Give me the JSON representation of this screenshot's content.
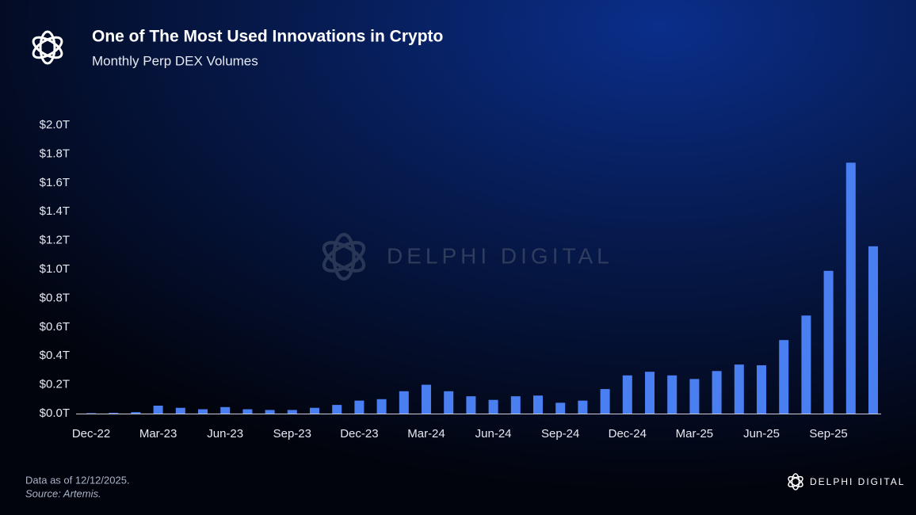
{
  "chart_data": {
    "type": "bar",
    "title": "One of The Most Used Innovations in Crypto",
    "subtitle": "Monthly Perp DEX Volumes",
    "categories": [
      "Dec-22",
      null,
      null,
      "Mar-23",
      null,
      null,
      "Jun-23",
      null,
      null,
      "Sep-23",
      null,
      null,
      "Dec-23",
      null,
      null,
      "Mar-24",
      null,
      null,
      "Jun-24",
      null,
      null,
      "Sep-24",
      null,
      null,
      "Dec-24",
      null,
      null,
      "Mar-25",
      null,
      null,
      "Jun-25",
      null,
      null,
      "Sep-25",
      null,
      null
    ],
    "values": [
      0.003,
      0.005,
      0.01,
      0.055,
      0.04,
      0.03,
      0.045,
      0.03,
      0.025,
      0.025,
      0.04,
      0.06,
      0.09,
      0.1,
      0.155,
      0.2,
      0.155,
      0.12,
      0.095,
      0.12,
      0.125,
      0.075,
      0.09,
      0.17,
      0.265,
      0.29,
      0.265,
      0.24,
      0.295,
      0.34,
      0.335,
      0.51,
      0.68,
      0.99,
      1.74,
      1.16
    ],
    "color": "#4a7ff2",
    "ylim": [
      0,
      2
    ],
    "yticks": [
      {
        "value": 0,
        "label": "$0.0T"
      },
      {
        "value": 0.2,
        "label": "$0.2T"
      },
      {
        "value": 0.4,
        "label": "$0.4T"
      },
      {
        "value": 0.6,
        "label": "$0.6T"
      },
      {
        "value": 0.8,
        "label": "$0.8T"
      },
      {
        "value": 1.0,
        "label": "$1.0T"
      },
      {
        "value": 1.2,
        "label": "$1.2T"
      },
      {
        "value": 1.4,
        "label": "$1.4T"
      },
      {
        "value": 1.6,
        "label": "$1.6T"
      },
      {
        "value": 1.8,
        "label": "$1.8T"
      },
      {
        "value": 2.0,
        "label": "$2.0T"
      }
    ],
    "grid": false,
    "note": "Data as of 12/12/2025.",
    "source": "Source: Artemis.",
    "watermark": "DELPHI DIGITAL",
    "brand": "DELPHI DIGITAL"
  }
}
